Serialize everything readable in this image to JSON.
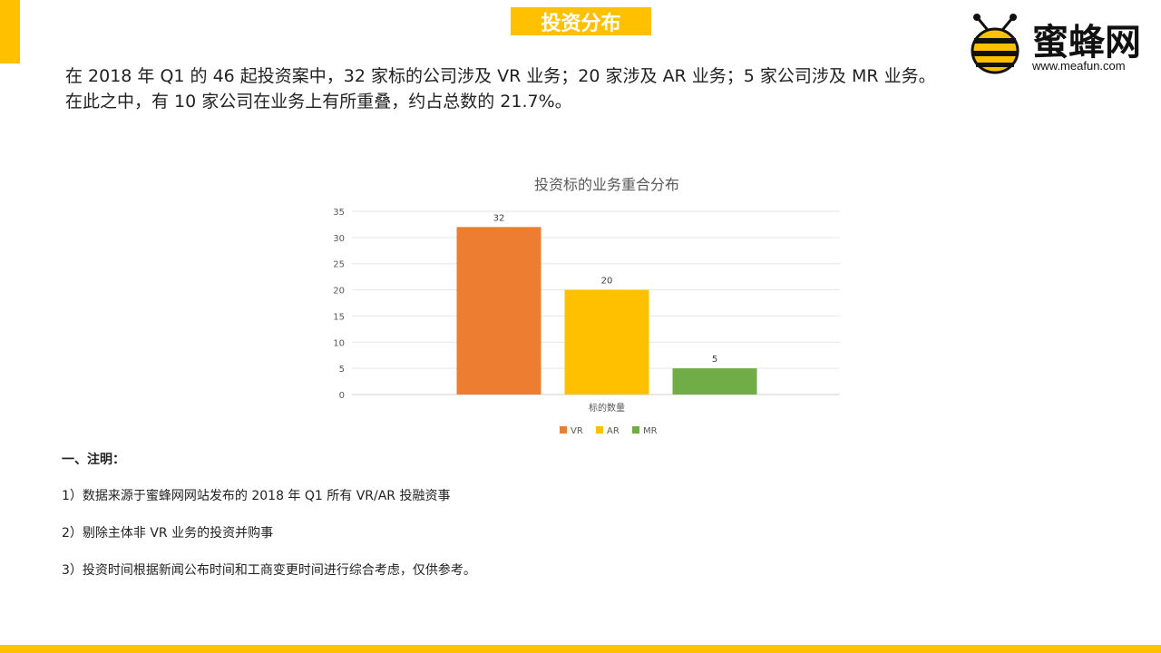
{
  "page": {
    "title": "投资分布",
    "accent_color": "#ffc000"
  },
  "logo": {
    "name": "蜜蜂网",
    "url": "www.meafun.com",
    "icon": "bee-icon"
  },
  "intro": {
    "line1": "在 2018 年 Q1 的 46 起投资案中，32 家标的公司涉及 VR 业务；20 家涉及 AR 业务；5 家公司涉及 MR 业务。",
    "line2": "在此之中，有 10 家公司在业务上有所重叠，约占总数的 21.7%。"
  },
  "chart_data": {
    "type": "bar",
    "title": "投资标的业务重合分布",
    "categories": [
      "标的数量"
    ],
    "series": [
      {
        "name": "VR",
        "values": [
          32
        ],
        "color": "#ed7d31"
      },
      {
        "name": "AR",
        "values": [
          20
        ],
        "color": "#ffc000"
      },
      {
        "name": "MR",
        "values": [
          5
        ],
        "color": "#70ad47"
      }
    ],
    "xlabel": "",
    "ylabel": "",
    "ylim": [
      0,
      35
    ],
    "yticks": [
      0,
      5,
      10,
      15,
      20,
      25,
      30,
      35
    ],
    "grid": true,
    "legend_position": "bottom",
    "data_labels": true
  },
  "notes": {
    "heading": "一、注明：",
    "items": [
      "1）数据来源于蜜蜂网网站发布的 2018 年 Q1 所有 VR/AR 投融资事",
      "2）剔除主体非 VR 业务的投资并购事",
      "3）投资时间根据新闻公布时间和工商变更时间进行综合考虑，仅供参考。"
    ]
  }
}
